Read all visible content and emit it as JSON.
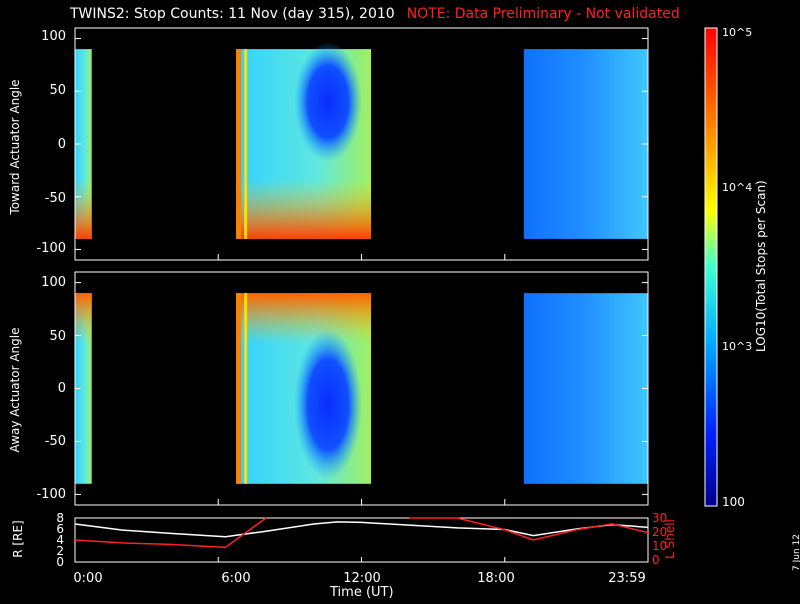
{
  "header": {
    "title": "TWINS2: Stop Counts: 11 Nov (day 315), 2010",
    "note": "NOTE: Data Preliminary - Not validated"
  },
  "colorbar": {
    "label": "LOG10(Total Stops per Scan)",
    "ticks": [
      "10^5",
      "10^4",
      "10^3",
      "100"
    ],
    "scale": "log",
    "range": [
      100,
      100000
    ]
  },
  "panels": {
    "top": {
      "ylabel": "Toward Actuator Angle",
      "yticks": [
        "100",
        "50",
        "0",
        "-50",
        "-100"
      ]
    },
    "bottom": {
      "ylabel": "Away Actuator Angle",
      "yticks": [
        "100",
        "50",
        "0",
        "-50",
        "-100"
      ]
    },
    "orbit": {
      "ylabel_left": "R [RE]",
      "ylabel_right": "L Shell",
      "left_ticks": [
        "8",
        "6",
        "4",
        "2",
        "0"
      ],
      "right_ticks": [
        "30",
        "20",
        "10",
        "0"
      ]
    }
  },
  "xaxis": {
    "label": "Time (UT)",
    "ticks": [
      "0:00",
      "6:00",
      "12:00",
      "18:00",
      "23:59"
    ]
  },
  "date_stamp": "7 Jun 12",
  "colors": {
    "title": "#ffffff",
    "note": "#ff2020",
    "r_line": "#ffffff",
    "lshell_line": "#ff2020"
  },
  "chart_data": [
    {
      "type": "heatmap",
      "title": "Toward Actuator Angle",
      "ylabel": "Toward Actuator Angle",
      "ylim": [
        -110,
        110
      ],
      "xlim_hours": [
        0,
        24
      ],
      "data_intervals_hours": [
        [
          0.0,
          0.7
        ],
        [
          6.75,
          12.4
        ],
        [
          18.8,
          24.0
        ]
      ],
      "angle_range": [
        -90,
        90
      ]
    },
    {
      "type": "heatmap",
      "title": "Away Actuator Angle",
      "ylabel": "Away Actuator Angle",
      "ylim": [
        -110,
        110
      ],
      "xlim_hours": [
        0,
        24
      ],
      "data_intervals_hours": [
        [
          0.0,
          0.7
        ],
        [
          6.75,
          12.4
        ],
        [
          18.8,
          24.0
        ]
      ],
      "angle_range": [
        -90,
        90
      ]
    },
    {
      "type": "line",
      "xlabel": "Time (UT)",
      "x_hours": [
        0,
        2,
        4,
        6.3,
        8,
        10,
        11,
        12,
        14,
        16,
        18,
        19.2,
        21,
        22.5,
        24
      ],
      "series": [
        {
          "name": "R [RE]",
          "values": [
            6.9,
            5.8,
            5.2,
            4.6,
            5.6,
            6.9,
            7.3,
            7.2,
            6.7,
            6.2,
            5.9,
            4.8,
            6.0,
            6.8,
            6.3
          ]
        },
        {
          "name": "L Shell",
          "values": [
            15,
            13,
            12,
            10,
            35,
            null,
            null,
            null,
            35,
            30,
            22,
            15,
            22,
            26,
            20
          ]
        }
      ],
      "ylim_left": [
        0,
        8
      ],
      "ylim_right": [
        0,
        30
      ]
    }
  ]
}
